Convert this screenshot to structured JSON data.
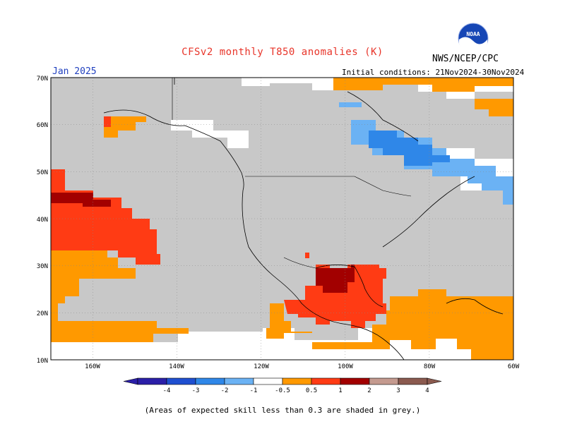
{
  "header": {
    "title": "CFSv2 monthly T850 anomalies (K)",
    "agency": "NWS/NCEP/CPC",
    "logo_text": "NOAA",
    "month": "Jan 2025",
    "initial_conditions": "Initial conditions: 21Nov2024-30Nov2024"
  },
  "map": {
    "lat_labels": [
      "70N",
      "60N",
      "50N",
      "40N",
      "30N",
      "20N",
      "10N"
    ],
    "lon_labels": [
      "160W",
      "140W",
      "120W",
      "100W",
      "80W",
      "60W"
    ]
  },
  "colorbar": {
    "labels": [
      "-4",
      "-3",
      "-2",
      "-1",
      "-0.5",
      "0.5",
      "1",
      "2",
      "3",
      "4"
    ],
    "colors": [
      "#2b1fa8",
      "#1f4fd0",
      "#2f87e8",
      "#6bb2f4",
      "#ffffff",
      "#ff9900",
      "#ff3b14",
      "#a20000",
      "#c49a8f",
      "#8b5a4f"
    ]
  },
  "footnote": "(Areas of expected skill less than 0.3 are shaded in grey.)",
  "colors": {
    "grey_skill": "#c8c8c8",
    "orange": "#ff9900",
    "red_orange": "#ff3b14",
    "dark_red": "#a20000",
    "light_blue": "#6bb2f4",
    "blue": "#2f87e8"
  }
}
